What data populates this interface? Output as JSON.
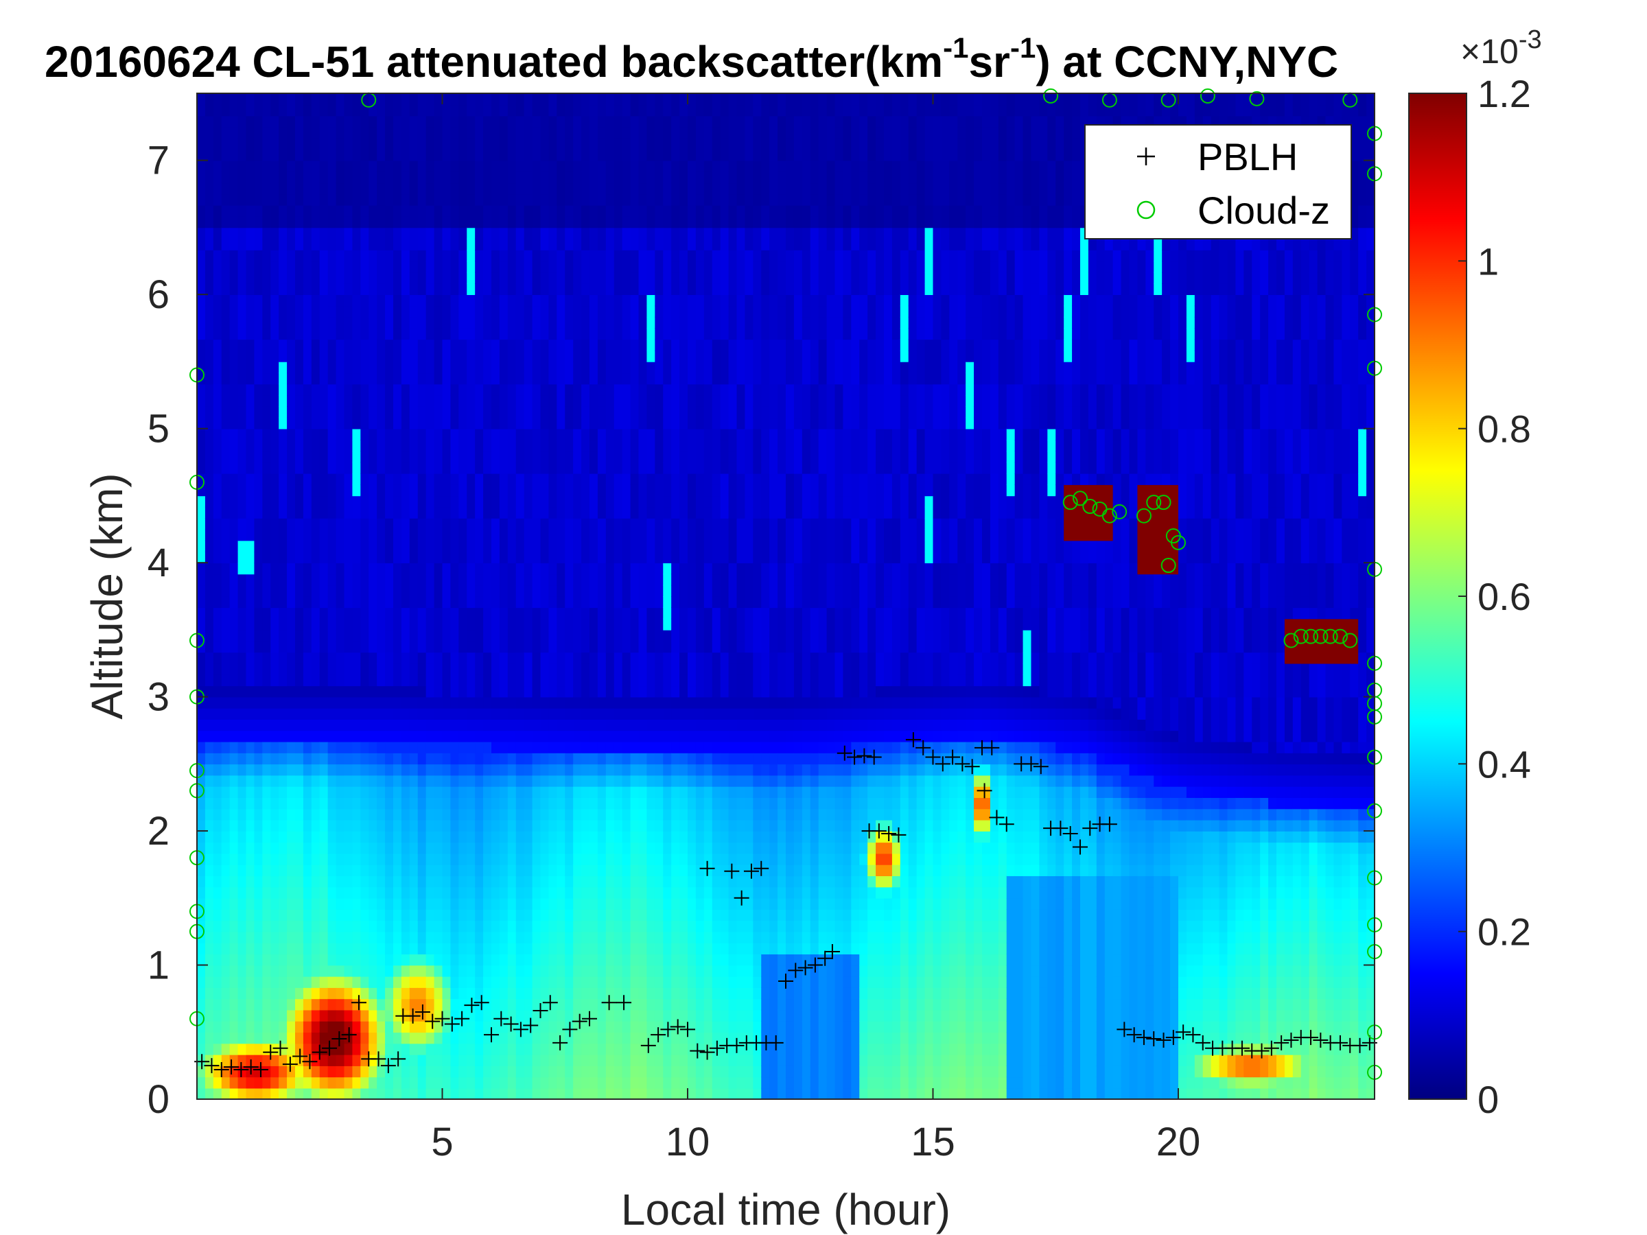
{
  "chart_data": {
    "type": "heatmap",
    "title": {
      "prefix": "20160624  CL-51 attenuated backscatter(km",
      "sup1": "-1",
      "mid": "sr",
      "sup2": "-1",
      "suffix": ") at CCNY,NYC"
    },
    "xlabel": "Local time (hour)",
    "ylabel": "Altitude (km)",
    "xlim": [
      0,
      24
    ],
    "ylim": [
      0,
      7.5
    ],
    "xticks": [
      5,
      10,
      15,
      20
    ],
    "yticks": [
      0,
      1,
      2,
      3,
      4,
      5,
      6,
      7
    ],
    "colorbar": {
      "min": 0,
      "max": 1.2,
      "ticks": [
        0,
        0.2,
        0.4,
        0.6,
        0.8,
        1,
        1.2
      ],
      "tick_labels": [
        "0",
        "0.2",
        "0.4",
        "0.6",
        "0.8",
        "1",
        "1.2"
      ],
      "exponent_base": "×10",
      "exponent": "-3",
      "colormap": "jet"
    },
    "legend": {
      "position": "top-right",
      "entries": [
        {
          "label": "PBLH",
          "marker": "plus",
          "color": "#000000"
        },
        {
          "label": "Cloud-z",
          "marker": "circle",
          "color": "#00cc00"
        }
      ]
    },
    "pblh": {
      "name": "PBLH",
      "points": [
        [
          0.1,
          0.28
        ],
        [
          0.3,
          0.25
        ],
        [
          0.5,
          0.22
        ],
        [
          0.7,
          0.24
        ],
        [
          0.9,
          0.22
        ],
        [
          1.1,
          0.24
        ],
        [
          1.3,
          0.22
        ],
        [
          1.5,
          0.35
        ],
        [
          1.7,
          0.38
        ],
        [
          1.9,
          0.26
        ],
        [
          2.1,
          0.32
        ],
        [
          2.3,
          0.28
        ],
        [
          2.5,
          0.35
        ],
        [
          2.7,
          0.38
        ],
        [
          2.9,
          0.45
        ],
        [
          3.1,
          0.48
        ],
        [
          3.3,
          0.72
        ],
        [
          3.5,
          0.3
        ],
        [
          3.7,
          0.3
        ],
        [
          3.9,
          0.25
        ],
        [
          4.1,
          0.3
        ],
        [
          4.2,
          0.62
        ],
        [
          4.4,
          0.62
        ],
        [
          4.6,
          0.65
        ],
        [
          4.8,
          0.58
        ],
        [
          5.0,
          0.6
        ],
        [
          5.2,
          0.56
        ],
        [
          5.4,
          0.6
        ],
        [
          5.6,
          0.7
        ],
        [
          5.8,
          0.72
        ],
        [
          6.0,
          0.48
        ],
        [
          6.2,
          0.6
        ],
        [
          6.4,
          0.56
        ],
        [
          6.6,
          0.52
        ],
        [
          6.8,
          0.55
        ],
        [
          7.0,
          0.66
        ],
        [
          7.2,
          0.72
        ],
        [
          7.4,
          0.42
        ],
        [
          7.6,
          0.52
        ],
        [
          7.8,
          0.58
        ],
        [
          8.0,
          0.6
        ],
        [
          8.4,
          0.72
        ],
        [
          8.7,
          0.72
        ],
        [
          9.2,
          0.4
        ],
        [
          9.4,
          0.48
        ],
        [
          9.6,
          0.52
        ],
        [
          9.8,
          0.54
        ],
        [
          10.0,
          0.52
        ],
        [
          10.2,
          0.36
        ],
        [
          10.4,
          0.35
        ],
        [
          10.6,
          0.38
        ],
        [
          10.8,
          0.4
        ],
        [
          11.0,
          0.4
        ],
        [
          11.2,
          0.42
        ],
        [
          11.4,
          0.42
        ],
        [
          11.6,
          0.42
        ],
        [
          11.8,
          0.42
        ],
        [
          10.4,
          1.72
        ],
        [
          10.9,
          1.7
        ],
        [
          11.1,
          1.5
        ],
        [
          11.3,
          1.7
        ],
        [
          11.5,
          1.72
        ],
        [
          12.0,
          0.88
        ],
        [
          12.2,
          0.96
        ],
        [
          12.4,
          0.98
        ],
        [
          12.6,
          1.0
        ],
        [
          12.8,
          1.05
        ],
        [
          12.95,
          1.1
        ],
        [
          13.2,
          2.58
        ],
        [
          13.4,
          2.55
        ],
        [
          13.6,
          2.56
        ],
        [
          13.8,
          2.55
        ],
        [
          13.7,
          2.0
        ],
        [
          13.9,
          2.0
        ],
        [
          14.1,
          1.98
        ],
        [
          14.3,
          1.97
        ],
        [
          14.6,
          2.68
        ],
        [
          14.8,
          2.62
        ],
        [
          15.0,
          2.55
        ],
        [
          15.2,
          2.5
        ],
        [
          15.4,
          2.55
        ],
        [
          15.6,
          2.5
        ],
        [
          15.8,
          2.48
        ],
        [
          16.0,
          2.62
        ],
        [
          16.2,
          2.62
        ],
        [
          16.05,
          2.3
        ],
        [
          16.3,
          2.1
        ],
        [
          16.5,
          2.05
        ],
        [
          16.8,
          2.5
        ],
        [
          17.0,
          2.5
        ],
        [
          17.2,
          2.48
        ],
        [
          17.4,
          2.02
        ],
        [
          17.6,
          2.02
        ],
        [
          17.8,
          1.98
        ],
        [
          18.0,
          1.88
        ],
        [
          18.2,
          2.02
        ],
        [
          18.4,
          2.05
        ],
        [
          18.6,
          2.05
        ],
        [
          18.9,
          0.52
        ],
        [
          19.1,
          0.48
        ],
        [
          19.3,
          0.46
        ],
        [
          19.5,
          0.45
        ],
        [
          19.7,
          0.44
        ],
        [
          19.9,
          0.46
        ],
        [
          20.1,
          0.5
        ],
        [
          20.3,
          0.48
        ],
        [
          20.5,
          0.42
        ],
        [
          20.7,
          0.38
        ],
        [
          20.9,
          0.38
        ],
        [
          21.1,
          0.38
        ],
        [
          21.3,
          0.38
        ],
        [
          21.5,
          0.36
        ],
        [
          21.7,
          0.36
        ],
        [
          21.9,
          0.38
        ],
        [
          22.1,
          0.42
        ],
        [
          22.3,
          0.44
        ],
        [
          22.5,
          0.46
        ],
        [
          22.7,
          0.46
        ],
        [
          22.9,
          0.44
        ],
        [
          23.1,
          0.42
        ],
        [
          23.3,
          0.42
        ],
        [
          23.5,
          0.4
        ],
        [
          23.7,
          0.4
        ],
        [
          23.9,
          0.42
        ]
      ]
    },
    "cloud_z": {
      "name": "Cloud-z",
      "points": [
        [
          17.8,
          4.45
        ],
        [
          18.0,
          4.48
        ],
        [
          18.2,
          4.42
        ],
        [
          18.4,
          4.4
        ],
        [
          18.6,
          4.35
        ],
        [
          18.8,
          4.38
        ],
        [
          19.3,
          4.35
        ],
        [
          19.5,
          4.45
        ],
        [
          19.7,
          4.45
        ],
        [
          19.9,
          4.2
        ],
        [
          20.0,
          4.15
        ],
        [
          19.8,
          3.98
        ],
        [
          22.3,
          3.42
        ],
        [
          22.5,
          3.45
        ],
        [
          22.7,
          3.45
        ],
        [
          22.9,
          3.45
        ],
        [
          23.1,
          3.45
        ],
        [
          23.3,
          3.45
        ],
        [
          23.5,
          3.42
        ],
        [
          0.0,
          3.0
        ],
        [
          0.0,
          2.45
        ],
        [
          0.0,
          2.3
        ],
        [
          0.0,
          1.8
        ],
        [
          0.0,
          1.4
        ],
        [
          0.0,
          1.25
        ],
        [
          0.0,
          4.6
        ],
        [
          0.0,
          5.4
        ],
        [
          0.0,
          3.42
        ],
        [
          0.0,
          0.6
        ],
        [
          24.0,
          7.2
        ],
        [
          24.0,
          6.9
        ],
        [
          24.0,
          5.85
        ],
        [
          24.0,
          5.45
        ],
        [
          24.0,
          3.95
        ],
        [
          24.0,
          3.25
        ],
        [
          24.0,
          3.05
        ],
        [
          24.0,
          2.95
        ],
        [
          24.0,
          2.85
        ],
        [
          24.0,
          2.55
        ],
        [
          24.0,
          2.15
        ],
        [
          24.0,
          1.65
        ],
        [
          24.0,
          1.3
        ],
        [
          24.0,
          1.1
        ],
        [
          24.0,
          0.5
        ],
        [
          24.0,
          0.2
        ],
        [
          3.5,
          7.45
        ],
        [
          17.4,
          7.48
        ],
        [
          18.6,
          7.45
        ],
        [
          19.8,
          7.45
        ],
        [
          20.6,
          7.48
        ],
        [
          21.6,
          7.46
        ],
        [
          23.5,
          7.45
        ]
      ]
    },
    "field": {
      "description_unit": "x10^-3 km^-1 sr^-1",
      "layer_top_profile": [
        [
          0,
          2.65
        ],
        [
          4,
          2.65
        ],
        [
          8,
          2.6
        ],
        [
          12,
          2.58
        ],
        [
          14,
          2.65
        ],
        [
          16,
          2.7
        ],
        [
          18,
          2.6
        ],
        [
          20,
          2.3
        ],
        [
          22,
          2.2
        ],
        [
          24,
          2.15
        ]
      ],
      "hotspots": [
        {
          "x": 2.8,
          "y": 0.45,
          "sx": 1.2,
          "sy": 0.55,
          "v": 1.25
        },
        {
          "x": 1.2,
          "y": 0.2,
          "sx": 1.4,
          "sy": 0.3,
          "v": 1.1
        },
        {
          "x": 4.5,
          "y": 0.7,
          "sx": 0.9,
          "sy": 0.45,
          "v": 0.9
        },
        {
          "x": 14.0,
          "y": 1.8,
          "sx": 0.45,
          "sy": 0.3,
          "v": 1.0
        },
        {
          "x": 16.0,
          "y": 2.2,
          "sx": 0.15,
          "sy": 0.3,
          "v": 1.25
        },
        {
          "x": 21.5,
          "y": 0.25,
          "sx": 1.6,
          "sy": 0.2,
          "v": 0.95
        }
      ],
      "clouds": [
        {
          "x0": 17.6,
          "x1": 18.7,
          "y0": 4.15,
          "y1": 4.55,
          "v": 1.25
        },
        {
          "x0": 19.2,
          "x1": 20.0,
          "y0": 3.95,
          "y1": 4.6,
          "v": 1.25
        },
        {
          "x0": 22.2,
          "x1": 23.7,
          "y0": 3.28,
          "y1": 3.6,
          "v": 1.25
        },
        {
          "x0": 0.8,
          "x1": 1.1,
          "y0": 3.95,
          "y1": 4.2,
          "v": 0.45
        }
      ]
    }
  }
}
